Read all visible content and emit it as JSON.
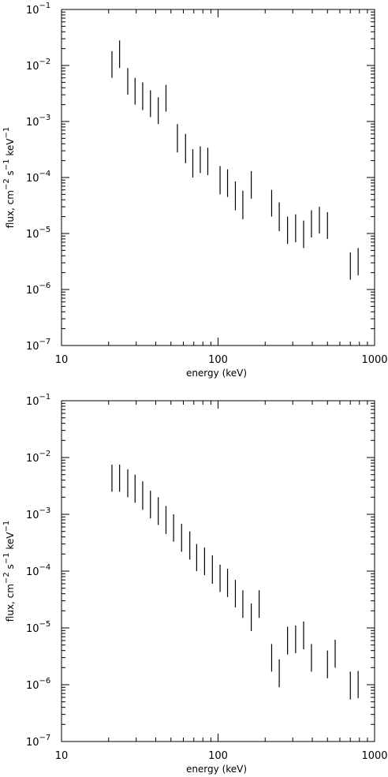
{
  "chart_data": [
    {
      "type": "scatter",
      "style": "error bars only",
      "xlabel": "energy (keV)",
      "ylabel_parts": [
        "flux, cm",
        "−2",
        " s",
        "−1",
        " keV",
        "−1"
      ],
      "xscale": "log",
      "yscale": "log",
      "xlim": [
        10,
        1000
      ],
      "ylim": [
        1e-07,
        0.1
      ],
      "x_ticks": [
        {
          "value": 10,
          "label": "10"
        },
        {
          "value": 100,
          "label": "100"
        },
        {
          "value": 1000,
          "label": "1000"
        }
      ],
      "y_ticks": [
        {
          "value": 1e-07,
          "base": "10",
          "exp": "−7"
        },
        {
          "value": 1e-06,
          "base": "10",
          "exp": "−6"
        },
        {
          "value": 1e-05,
          "base": "10",
          "exp": "−5"
        },
        {
          "value": 0.0001,
          "base": "10",
          "exp": "−4"
        },
        {
          "value": 0.001,
          "base": "10",
          "exp": "−3"
        },
        {
          "value": 0.01,
          "base": "10",
          "exp": "−2"
        },
        {
          "value": 0.1,
          "base": "10",
          "exp": "−1"
        }
      ],
      "grid": false,
      "legend": "none",
      "points": [
        {
          "x": 21,
          "y_low": 0.006,
          "y_high": 0.018
        },
        {
          "x": 23.5,
          "y_low": 0.009,
          "y_high": 0.028
        },
        {
          "x": 26.5,
          "y_low": 0.003,
          "y_high": 0.009
        },
        {
          "x": 29.5,
          "y_low": 0.002,
          "y_high": 0.006
        },
        {
          "x": 33,
          "y_low": 0.0016,
          "y_high": 0.005
        },
        {
          "x": 37,
          "y_low": 0.0012,
          "y_high": 0.0036
        },
        {
          "x": 41.5,
          "y_low": 0.0009,
          "y_high": 0.0027
        },
        {
          "x": 46.5,
          "y_low": 0.0015,
          "y_high": 0.0045
        },
        {
          "x": 55,
          "y_low": 0.00028,
          "y_high": 0.0009
        },
        {
          "x": 62,
          "y_low": 0.00018,
          "y_high": 0.0006
        },
        {
          "x": 69,
          "y_low": 0.0001,
          "y_high": 0.00032
        },
        {
          "x": 77,
          "y_low": 0.00012,
          "y_high": 0.00036
        },
        {
          "x": 86,
          "y_low": 0.00011,
          "y_high": 0.00034
        },
        {
          "x": 103,
          "y_low": 5e-05,
          "y_high": 0.00016
        },
        {
          "x": 115,
          "y_low": 4.5e-05,
          "y_high": 0.00014
        },
        {
          "x": 129,
          "y_low": 2.6e-05,
          "y_high": 8.5e-05
        },
        {
          "x": 144,
          "y_low": 1.8e-05,
          "y_high": 5.8e-05
        },
        {
          "x": 163,
          "y_low": 4.2e-05,
          "y_high": 0.00013
        },
        {
          "x": 220,
          "y_low": 2e-05,
          "y_high": 6e-05
        },
        {
          "x": 246,
          "y_low": 1.1e-05,
          "y_high": 3.6e-05
        },
        {
          "x": 278,
          "y_low": 6.5e-06,
          "y_high": 2e-05
        },
        {
          "x": 313,
          "y_low": 7e-06,
          "y_high": 2.2e-05
        },
        {
          "x": 352,
          "y_low": 5.5e-06,
          "y_high": 1.7e-05
        },
        {
          "x": 395,
          "y_low": 8.5e-06,
          "y_high": 2.6e-05
        },
        {
          "x": 444,
          "y_low": 1e-05,
          "y_high": 3e-05
        },
        {
          "x": 500,
          "y_low": 8e-06,
          "y_high": 2.4e-05
        },
        {
          "x": 700,
          "y_low": 1.5e-06,
          "y_high": 4.6e-06
        },
        {
          "x": 785,
          "y_low": 1.8e-06,
          "y_high": 5.5e-06
        }
      ]
    },
    {
      "type": "scatter",
      "style": "error bars only",
      "xlabel": "energy (keV)",
      "ylabel_parts": [
        "flux, cm",
        "−2",
        " s",
        "−1",
        " keV",
        "−1"
      ],
      "xscale": "log",
      "yscale": "log",
      "xlim": [
        10,
        1000
      ],
      "ylim": [
        1e-07,
        0.1
      ],
      "x_ticks": [
        {
          "value": 10,
          "label": "10"
        },
        {
          "value": 100,
          "label": "100"
        },
        {
          "value": 1000,
          "label": "1000"
        }
      ],
      "y_ticks": [
        {
          "value": 1e-07,
          "base": "10",
          "exp": "−7"
        },
        {
          "value": 1e-06,
          "base": "10",
          "exp": "−6"
        },
        {
          "value": 1e-05,
          "base": "10",
          "exp": "−5"
        },
        {
          "value": 0.0001,
          "base": "10",
          "exp": "−4"
        },
        {
          "value": 0.001,
          "base": "10",
          "exp": "−3"
        },
        {
          "value": 0.01,
          "base": "10",
          "exp": "−2"
        },
        {
          "value": 0.1,
          "base": "10",
          "exp": "−1"
        }
      ],
      "grid": false,
      "legend": "none",
      "points": [
        {
          "x": 21,
          "y_low": 0.0025,
          "y_high": 0.0075
        },
        {
          "x": 23.5,
          "y_low": 0.0025,
          "y_high": 0.0075
        },
        {
          "x": 26.5,
          "y_low": 0.002,
          "y_high": 0.0062
        },
        {
          "x": 29.5,
          "y_low": 0.0016,
          "y_high": 0.005
        },
        {
          "x": 33,
          "y_low": 0.0012,
          "y_high": 0.0038
        },
        {
          "x": 37,
          "y_low": 0.00085,
          "y_high": 0.0026
        },
        {
          "x": 41.5,
          "y_low": 0.00065,
          "y_high": 0.002
        },
        {
          "x": 46.5,
          "y_low": 0.00045,
          "y_high": 0.0014
        },
        {
          "x": 52,
          "y_low": 0.00033,
          "y_high": 0.001
        },
        {
          "x": 58.5,
          "y_low": 0.00022,
          "y_high": 0.00068
        },
        {
          "x": 66,
          "y_low": 0.00016,
          "y_high": 0.0005
        },
        {
          "x": 73,
          "y_low": 0.0001,
          "y_high": 0.0003
        },
        {
          "x": 82,
          "y_low": 8.5e-05,
          "y_high": 0.00026
        },
        {
          "x": 92,
          "y_low": 6e-05,
          "y_high": 0.00019
        },
        {
          "x": 103,
          "y_low": 4.3e-05,
          "y_high": 0.00013
        },
        {
          "x": 115,
          "y_low": 3.5e-05,
          "y_high": 0.00011
        },
        {
          "x": 129,
          "y_low": 2.3e-05,
          "y_high": 7e-05
        },
        {
          "x": 144,
          "y_low": 1.5e-05,
          "y_high": 4.6e-05
        },
        {
          "x": 163,
          "y_low": 8.8e-06,
          "y_high": 2.7e-05
        },
        {
          "x": 183,
          "y_low": 1.5e-05,
          "y_high": 4.6e-05
        },
        {
          "x": 220,
          "y_low": 1.7e-06,
          "y_high": 5.2e-06
        },
        {
          "x": 246,
          "y_low": 9e-07,
          "y_high": 2.8e-06
        },
        {
          "x": 278,
          "y_low": 3.4e-06,
          "y_high": 1.05e-05
        },
        {
          "x": 313,
          "y_low": 3.6e-06,
          "y_high": 1.1e-05
        },
        {
          "x": 352,
          "y_low": 4.2e-06,
          "y_high": 1.3e-05
        },
        {
          "x": 395,
          "y_low": 1.7e-06,
          "y_high": 5.2e-06
        },
        {
          "x": 500,
          "y_low": 1.3e-06,
          "y_high": 4e-06
        },
        {
          "x": 560,
          "y_low": 2e-06,
          "y_high": 6.2e-06
        },
        {
          "x": 700,
          "y_low": 5.5e-07,
          "y_high": 1.7e-06
        },
        {
          "x": 785,
          "y_low": 5.8e-07,
          "y_high": 1.75e-06
        }
      ]
    }
  ]
}
